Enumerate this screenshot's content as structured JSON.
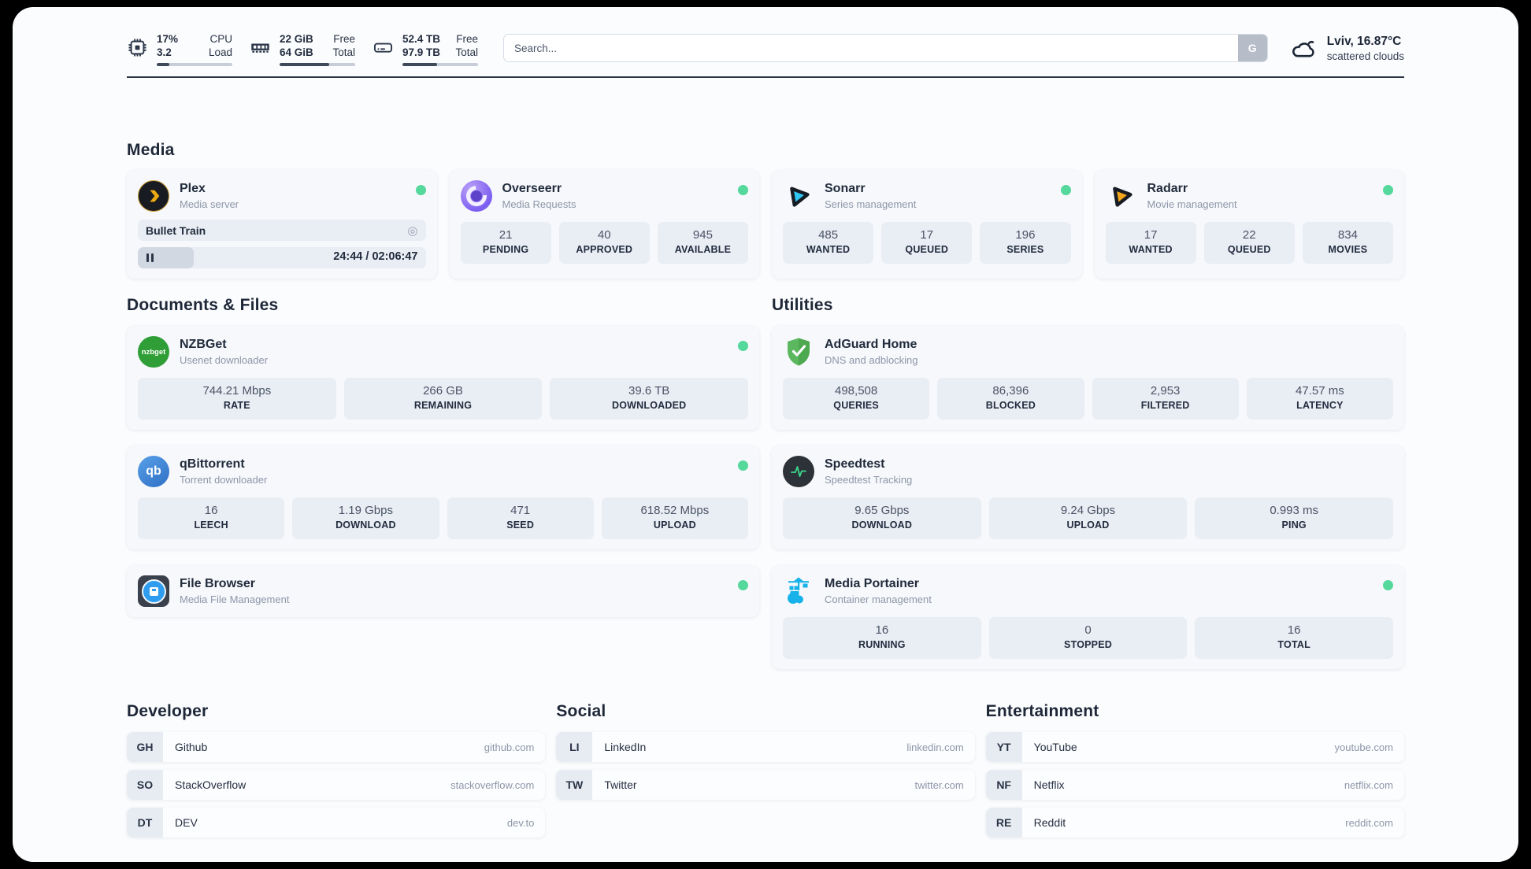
{
  "topbar": {
    "cpu": {
      "value_top": "17%",
      "value_bottom": "3.2",
      "label_top": "CPU",
      "label_bottom": "Load",
      "bar_pct": 17
    },
    "memory": {
      "value_top": "22 GiB",
      "value_bottom": "64 GiB",
      "label_top": "Free",
      "label_bottom": "Total",
      "bar_pct": 66
    },
    "disk": {
      "value_top": "52.4 TB",
      "value_bottom": "97.9 TB",
      "label_top": "Free",
      "label_bottom": "Total",
      "bar_pct": 46
    },
    "search": {
      "placeholder": "Search...",
      "button_label": "G"
    },
    "weather": {
      "summary": "Lviv, 16.87°C",
      "condition": "scattered clouds"
    }
  },
  "sections": {
    "media": "Media",
    "documents": "Documents & Files",
    "utilities": "Utilities"
  },
  "services": {
    "plex": {
      "name": "Plex",
      "description": "Media server",
      "now_playing": "Bullet Train",
      "progress_pct": 19.5,
      "time": "24:44 / 02:06:47"
    },
    "overseerr": {
      "name": "Overseerr",
      "description": "Media Requests",
      "stats": [
        {
          "value": "21",
          "label": "PENDING"
        },
        {
          "value": "40",
          "label": "APPROVED"
        },
        {
          "value": "945",
          "label": "AVAILABLE"
        }
      ]
    },
    "sonarr": {
      "name": "Sonarr",
      "description": "Series management",
      "stats": [
        {
          "value": "485",
          "label": "WANTED"
        },
        {
          "value": "17",
          "label": "QUEUED"
        },
        {
          "value": "196",
          "label": "SERIES"
        }
      ]
    },
    "radarr": {
      "name": "Radarr",
      "description": "Movie management",
      "stats": [
        {
          "value": "17",
          "label": "WANTED"
        },
        {
          "value": "22",
          "label": "QUEUED"
        },
        {
          "value": "834",
          "label": "MOVIES"
        }
      ]
    },
    "nzbget": {
      "name": "NZBGet",
      "description": "Usenet downloader",
      "icon_text": "nzbget",
      "stats": [
        {
          "value": "744.21 Mbps",
          "label": "RATE"
        },
        {
          "value": "266 GB",
          "label": "REMAINING"
        },
        {
          "value": "39.6 TB",
          "label": "DOWNLOADED"
        }
      ]
    },
    "qbittorrent": {
      "name": "qBittorrent",
      "description": "Torrent downloader",
      "icon_text": "qb",
      "stats": [
        {
          "value": "16",
          "label": "LEECH"
        },
        {
          "value": "1.19 Gbps",
          "label": "DOWNLOAD"
        },
        {
          "value": "471",
          "label": "SEED"
        },
        {
          "value": "618.52 Mbps",
          "label": "UPLOAD"
        }
      ]
    },
    "filebrowser": {
      "name": "File Browser",
      "description": "Media File Management"
    },
    "adguard": {
      "name": "AdGuard Home",
      "description": "DNS and adblocking",
      "stats": [
        {
          "value": "498,508",
          "label": "QUERIES"
        },
        {
          "value": "86,396",
          "label": "BLOCKED"
        },
        {
          "value": "2,953",
          "label": "FILTERED"
        },
        {
          "value": "47.57 ms",
          "label": "LATENCY"
        }
      ]
    },
    "speedtest": {
      "name": "Speedtest",
      "description": "Speedtest Tracking",
      "stats": [
        {
          "value": "9.65 Gbps",
          "label": "DOWNLOAD"
        },
        {
          "value": "9.24 Gbps",
          "label": "UPLOAD"
        },
        {
          "value": "0.993 ms",
          "label": "PING"
        }
      ]
    },
    "portainer": {
      "name": "Media Portainer",
      "description": "Container management",
      "stats": [
        {
          "value": "16",
          "label": "RUNNING"
        },
        {
          "value": "0",
          "label": "STOPPED"
        },
        {
          "value": "16",
          "label": "TOTAL"
        }
      ]
    }
  },
  "bookmarks": {
    "developer": {
      "title": "Developer",
      "items": [
        {
          "abbr": "GH",
          "name": "Github",
          "url": "github.com"
        },
        {
          "abbr": "SO",
          "name": "StackOverflow",
          "url": "stackoverflow.com"
        },
        {
          "abbr": "DT",
          "name": "DEV",
          "url": "dev.to"
        }
      ]
    },
    "social": {
      "title": "Social",
      "items": [
        {
          "abbr": "LI",
          "name": "LinkedIn",
          "url": "linkedin.com"
        },
        {
          "abbr": "TW",
          "name": "Twitter",
          "url": "twitter.com"
        }
      ]
    },
    "entertainment": {
      "title": "Entertainment",
      "items": [
        {
          "abbr": "YT",
          "name": "YouTube",
          "url": "youtube.com"
        },
        {
          "abbr": "NF",
          "name": "Netflix",
          "url": "netflix.com"
        },
        {
          "abbr": "RE",
          "name": "Reddit",
          "url": "reddit.com"
        }
      ]
    }
  },
  "colors": {
    "status_online": "#55d89c",
    "topbar_text": "#232d3f",
    "stat_box_bg": "#e9edf4",
    "page_bg": "#fbfcfe"
  }
}
